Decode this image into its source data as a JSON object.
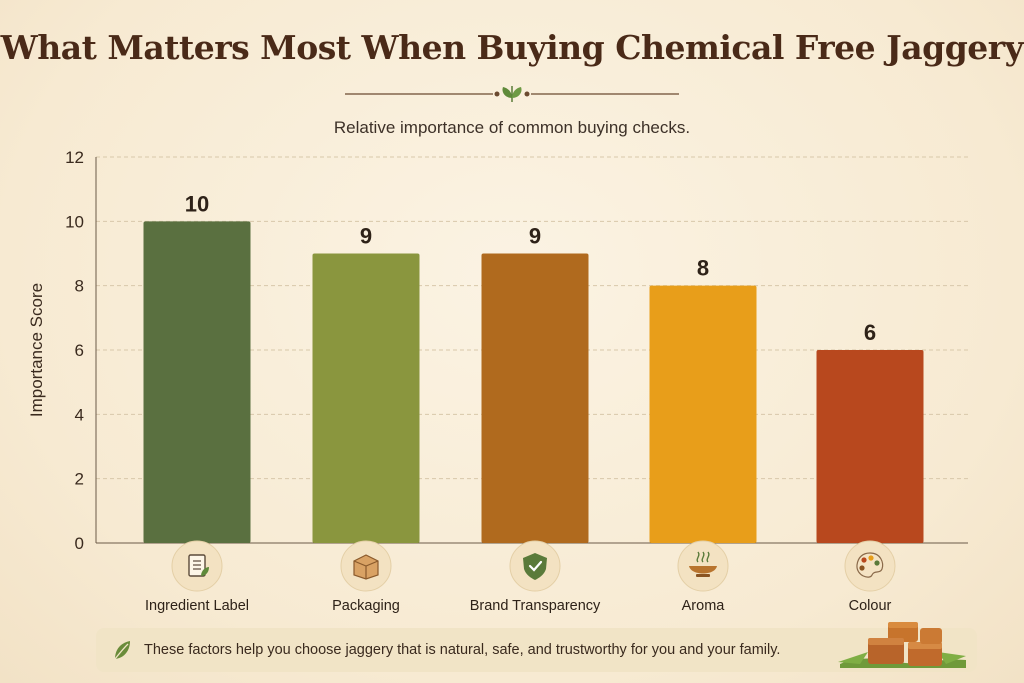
{
  "page": {
    "title": "What Matters Most When Buying Chemical Free Jaggery",
    "subtitle": "Relative importance of common buying checks.",
    "footer_text": "These factors help you choose jaggery that is natural, safe, and trustworthy for you and your family."
  },
  "chart_data": {
    "type": "bar",
    "title": "What Matters Most When Buying Chemical Free Jaggery",
    "subtitle": "Relative importance of common buying checks.",
    "xlabel": "",
    "ylabel": "Importance Score",
    "ylim": [
      0,
      12
    ],
    "yticks": [
      0,
      2,
      4,
      6,
      8,
      10,
      12
    ],
    "grid": true,
    "categories": [
      "Ingredient Label",
      "Packaging",
      "Brand Transparency",
      "Aroma",
      "Colour"
    ],
    "values": [
      10,
      9,
      9,
      8,
      6
    ],
    "colors": [
      "#5a7040",
      "#8a963e",
      "#b06a1e",
      "#e89e1a",
      "#b8481e"
    ],
    "icons": [
      "document-icon",
      "box-icon",
      "shield-check-icon",
      "bowl-icon",
      "palette-icon"
    ]
  }
}
